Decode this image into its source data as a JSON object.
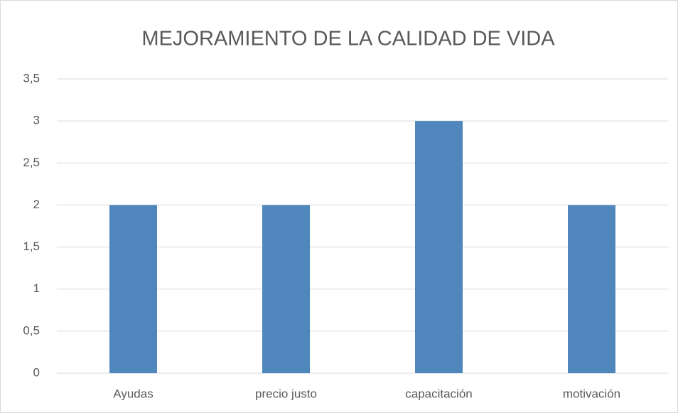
{
  "chart_data": {
    "type": "bar",
    "title": "MEJORAMIENTO DE LA CALIDAD DE VIDA",
    "categories": [
      "Ayudas",
      "precio justo",
      "capacitación",
      "motivación"
    ],
    "values": [
      2,
      2,
      3,
      2
    ],
    "color": "#4f87bd",
    "ylim": [
      0,
      3.5
    ],
    "yticks": [
      0,
      {
        "value": 0.5,
        "label": "0,5"
      },
      1,
      {
        "value": 1.5,
        "label": "1,5"
      },
      2,
      {
        "value": 2.5,
        "label": "2,5"
      },
      3,
      {
        "value": 3.5,
        "label": "3,5"
      }
    ],
    "grid": true
  }
}
